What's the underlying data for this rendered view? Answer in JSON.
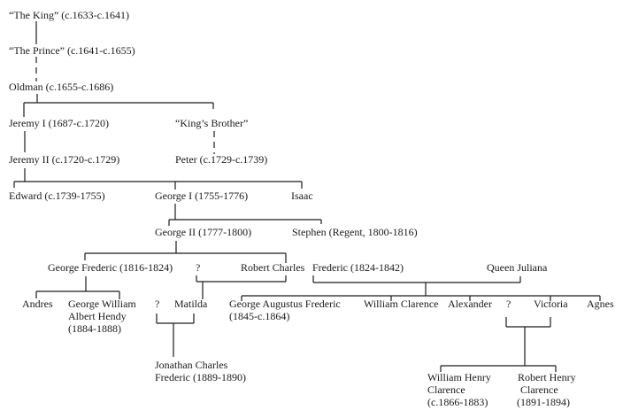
{
  "people": {
    "the_king": "“The King” (c.1633-c.1641)",
    "the_prince": "“The Prince” (c.1641-c.1655)",
    "oldman": "Oldman (c.1655-c.1686)",
    "jeremy_i": "Jeremy I (1687-c.1720)",
    "kings_brother": "“King’s Brother”",
    "jeremy_ii": "Jeremy II (c.1720-c.1729)",
    "peter": "Peter (c.1729-c.1739)",
    "edward": "Edward (c.1739-1755)",
    "george_i": "George I (1755-1776)",
    "isaac": "Isaac",
    "george_ii": "George II (1777-1800)",
    "stephen": "Stephen (Regent, 1800-1816)",
    "george_frederic": "George Frederic (1816-1824)",
    "unknown_1": "?",
    "robert_charles": "Robert Charles",
    "frederic": "Frederic (1824-1842)",
    "queen_juliana": "Queen Juliana",
    "andres": "Andres",
    "george_william": [
      "George William",
      "Albert Hendy",
      "(1884-1888)"
    ],
    "unknown_2": "?",
    "matilda": "Matilda",
    "george_augustus": [
      "George Augustus Frederic",
      "(1845-c.1864)"
    ],
    "william_clarence": "William Clarence",
    "alexander": "Alexander",
    "unknown_3": "?",
    "victoria": "Victoria",
    "agnes": "Agnes",
    "jonathan_charles": [
      "Jonathan Charles",
      "Frederic (1889-1890)"
    ],
    "william_henry": [
      "William Henry",
      "Clarence",
      "(c.1866-1883)"
    ],
    "robert_henry": [
      "Robert Henry",
      "Clarence",
      "(1891-1894)"
    ]
  }
}
